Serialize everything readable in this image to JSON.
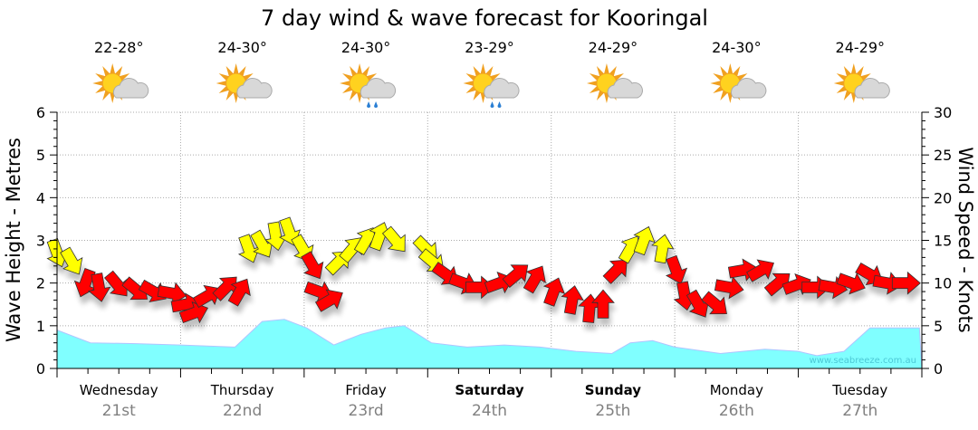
{
  "chart_data": {
    "type": "area+wind-arrows",
    "title": "7 day wind & wave forecast for Kooringal",
    "ylabel_left": "Wave Height - Metres",
    "ylabel_right": "Wind Speed - Knots",
    "ylim_left": [
      0,
      6
    ],
    "ylim_right": [
      0,
      30
    ],
    "yticks_left": [
      "0",
      "1",
      "2",
      "3",
      "4",
      "5",
      "6"
    ],
    "yticks_right": [
      "0",
      "5",
      "10",
      "15",
      "20",
      "25",
      "30"
    ],
    "grid": true,
    "watermark": "www.seabreeze.com.au",
    "days": [
      {
        "day": "Wednesday",
        "date": "21st",
        "temp": "22-28°",
        "icon": "sun-cloud",
        "bold": false
      },
      {
        "day": "Thursday",
        "date": "22nd",
        "temp": "24-30°",
        "icon": "sun-cloud",
        "bold": false
      },
      {
        "day": "Friday",
        "date": "23rd",
        "temp": "24-30°",
        "icon": "sun-cloud-rain",
        "bold": false
      },
      {
        "day": "Saturday",
        "date": "24th",
        "temp": "23-29°",
        "icon": "sun-cloud-rain",
        "bold": true
      },
      {
        "day": "Sunday",
        "date": "25th",
        "temp": "24-29°",
        "icon": "sun-cloud",
        "bold": true
      },
      {
        "day": "Monday",
        "date": "26th",
        "temp": "24-30°",
        "icon": "sun-cloud",
        "bold": false
      },
      {
        "day": "Tuesday",
        "date": "27th",
        "temp": "24-29°",
        "icon": "sun-cloud",
        "bold": false
      }
    ],
    "wave_series": {
      "name": "Wave height (m)",
      "color": "#80ffff",
      "day_offsets": [
        0,
        0.27,
        0.64,
        1.0,
        1.44,
        1.66,
        1.84,
        2.02,
        2.24,
        2.46,
        2.66,
        2.81,
        3.03,
        3.32,
        3.62,
        3.91,
        4.2,
        4.49,
        4.64,
        4.82,
        5.0,
        5.37,
        5.73,
        6.0,
        6.15,
        6.37,
        6.58,
        6.98
      ],
      "values": [
        0.9,
        0.6,
        0.58,
        0.55,
        0.5,
        1.1,
        1.15,
        0.95,
        0.55,
        0.8,
        0.95,
        1.0,
        0.6,
        0.5,
        0.55,
        0.5,
        0.4,
        0.35,
        0.6,
        0.65,
        0.5,
        0.35,
        0.45,
        0.4,
        0.3,
        0.4,
        0.95,
        0.95
      ]
    },
    "wind_series": {
      "name": "Wind speed (knots)",
      "yellow_color": "#ffff00",
      "red_color": "#ff0000",
      "yellow_threshold": 12.5,
      "day_offsets": [
        0,
        0.12,
        0.23,
        0.34,
        0.49,
        0.64,
        0.78,
        0.93,
        1.04,
        1.11,
        1.22,
        1.37,
        1.48,
        1.55,
        1.66,
        1.77,
        1.88,
        1.99,
        2.07,
        2.12,
        2.21,
        2.28,
        2.39,
        2.5,
        2.61,
        2.74,
        2.99,
        3.04,
        3.15,
        3.29,
        3.42,
        3.58,
        3.72,
        3.87,
        4.02,
        4.17,
        4.31,
        4.42,
        4.53,
        4.64,
        4.75,
        4.9,
        5.01,
        5.08,
        5.19,
        5.33,
        5.44,
        5.55,
        5.7,
        5.84,
        5.99,
        6.14,
        6.28,
        6.43,
        6.58,
        6.72,
        6.87
      ],
      "speeds": [
        13.5,
        12.5,
        10,
        9.5,
        9.8,
        9.2,
        9,
        8.8,
        7.5,
        6.5,
        8.5,
        9.5,
        9,
        14,
        14.5,
        15.5,
        16,
        14,
        12,
        9,
        8,
        12.5,
        14,
        15,
        15.5,
        15,
        14,
        12.5,
        11,
        10,
        9.5,
        10,
        11,
        10.5,
        9,
        8,
        7,
        7.5,
        11.5,
        14,
        15,
        14,
        11.5,
        8.5,
        7.5,
        7.5,
        9.5,
        11.5,
        11.5,
        10,
        9.8,
        9.5,
        9.5,
        10,
        11,
        10,
        10
      ],
      "directions_deg": [
        160,
        150,
        200,
        170,
        140,
        130,
        120,
        100,
        80,
        70,
        60,
        45,
        30,
        160,
        150,
        170,
        160,
        150,
        150,
        110,
        60,
        45,
        40,
        30,
        20,
        140,
        135,
        130,
        125,
        110,
        90,
        70,
        50,
        30,
        20,
        10,
        5,
        0,
        45,
        30,
        20,
        10,
        160,
        170,
        150,
        130,
        100,
        80,
        60,
        50,
        70,
        90,
        100,
        110,
        120,
        100,
        90
      ]
    }
  }
}
